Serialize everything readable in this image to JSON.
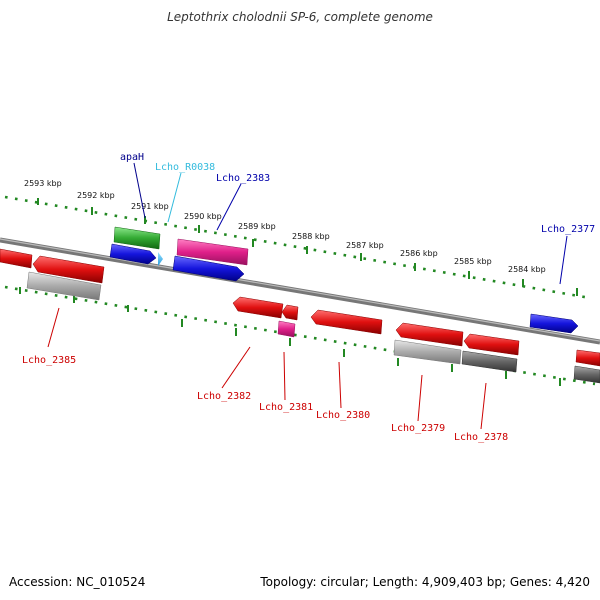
{
  "title": "Leptothrix cholodnii SP-6, complete genome",
  "accession": "Accession: NC_010524",
  "summary": "Topology: circular; Length: 4,909,403 bp; Genes: 4,420",
  "ticks": [
    {
      "label": "2593 kbp"
    },
    {
      "label": "2592 kbp"
    },
    {
      "label": "2591 kbp"
    },
    {
      "label": "2590 kbp"
    },
    {
      "label": "2589 kbp"
    },
    {
      "label": "2588 kbp"
    },
    {
      "label": "2587 kbp"
    },
    {
      "label": "2586 kbp"
    },
    {
      "label": "2585 kbp"
    },
    {
      "label": "2584 kbp"
    }
  ],
  "genes": [
    {
      "name": "apaH",
      "color": "#00008b"
    },
    {
      "name": "Lcho_R0038",
      "color": "#33bbdd"
    },
    {
      "name": "Lcho_2383",
      "color": "#0000aa"
    },
    {
      "name": "Lcho_2377",
      "color": "#0000aa"
    },
    {
      "name": "Lcho_2385",
      "color": "#cc0000"
    },
    {
      "name": "Lcho_2382",
      "color": "#cc0000"
    },
    {
      "name": "Lcho_2381",
      "color": "#cc0000"
    },
    {
      "name": "Lcho_2380",
      "color": "#cc0000"
    },
    {
      "name": "Lcho_2379",
      "color": "#cc0000"
    },
    {
      "name": "Lcho_2378",
      "color": "#cc0000"
    }
  ],
  "colors": {
    "forward_cds": "#1515dd",
    "reverse_cds": "#e01010",
    "rna": "#33aa33",
    "pink": "#e0208a",
    "gray_light": "#aaaaaa",
    "gray_dark": "#666666",
    "ruler": "#228822",
    "backbone": "#808080"
  }
}
